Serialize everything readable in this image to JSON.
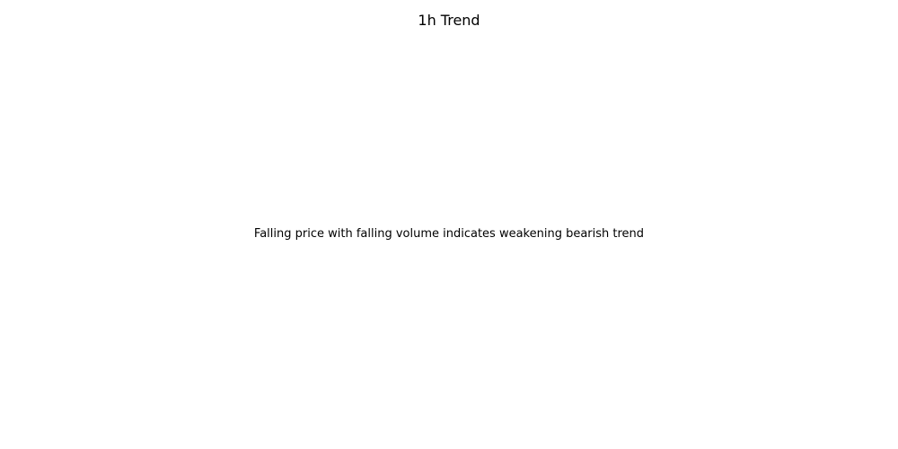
{
  "chart_data": {
    "type": "line",
    "title": "1h Trend",
    "annotations": [
      "Falling price with falling volume indicates weakening bearish trend"
    ],
    "axes_visible": false,
    "grid": false,
    "series": []
  }
}
